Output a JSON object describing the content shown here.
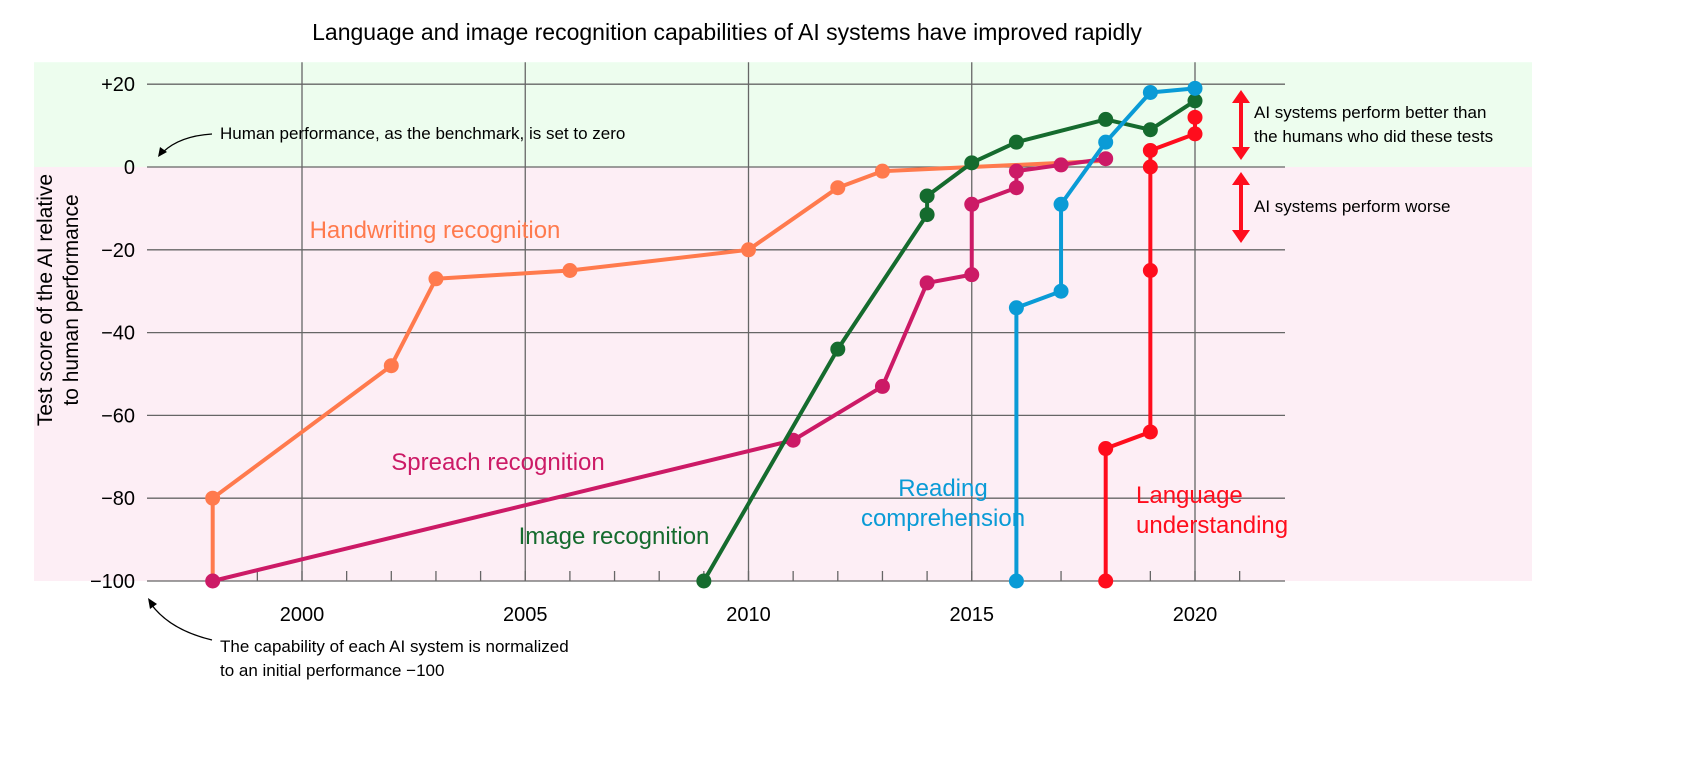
{
  "chart_data": {
    "type": "line",
    "title": "Language and image recognition capabilities of AI systems have improved rapidly",
    "xlabel": "",
    "ylabel": "Test score of the AI relative to human performance",
    "ylabel_lines": [
      "Test score of the AI relative",
      "to human performance"
    ],
    "xlim": [
      1997,
      2022
    ],
    "ylim": [
      -100,
      20
    ],
    "x_ticks": [
      2000,
      2005,
      2010,
      2015,
      2020
    ],
    "x_tick_labels": [
      "2000",
      "2005",
      "2010",
      "2015",
      "2020"
    ],
    "y_ticks": [
      20,
      0,
      -20,
      -40,
      -60,
      -80,
      -100
    ],
    "y_tick_labels": [
      "+20",
      "0",
      "−20",
      "−40",
      "−60",
      "−80",
      "−100"
    ],
    "grid": true,
    "series": [
      {
        "name": "Handwriting recognition",
        "color": "#ff7a4d",
        "x": [
          1998,
          1998,
          2002,
          2003,
          2006,
          2010,
          2012,
          2013,
          2018
        ],
        "y": [
          -100,
          -80,
          -48,
          -27,
          -25,
          -20,
          -5,
          -1,
          1.5
        ],
        "markers": [
          false,
          true,
          true,
          true,
          true,
          true,
          true,
          true,
          false
        ]
      },
      {
        "name": "Spreach recognition",
        "color": "#cc1a66",
        "x": [
          1998,
          2011,
          2013,
          2014,
          2015,
          2015,
          2016,
          2016,
          2017,
          2018
        ],
        "y": [
          -100,
          -66,
          -53,
          -28,
          -26,
          -9,
          -5,
          -1,
          0.5,
          2
        ]
      },
      {
        "name": "Image recognition",
        "color": "#156b2e",
        "x": [
          2009,
          2012,
          2014,
          2014,
          2015,
          2016,
          2018,
          2019,
          2020
        ],
        "y": [
          -100,
          -44,
          -11.5,
          -7,
          1,
          6,
          11.5,
          9,
          16
        ]
      },
      {
        "name": "Reading comprehension",
        "color": "#0a9bd6",
        "x": [
          2016,
          2016,
          2017,
          2017,
          2018,
          2019,
          2020
        ],
        "y": [
          -100,
          -34,
          -30,
          -9,
          6,
          18,
          19
        ]
      },
      {
        "name": "Language understanding",
        "color": "#ff0d1d",
        "x": [
          2018,
          2018,
          2019,
          2019,
          2019,
          2019,
          2020,
          2020
        ],
        "y": [
          -100,
          -68,
          -64,
          -25,
          0,
          4,
          8,
          12
        ]
      }
    ],
    "series_labels": [
      {
        "lines": [
          "Handwriting recognition"
        ]
      },
      {
        "lines": [
          "Spreach recognition"
        ]
      },
      {
        "lines": [
          "Image recognition"
        ]
      },
      {
        "lines": [
          "Reading",
          "comprehension"
        ]
      },
      {
        "lines": [
          "Language",
          "understanding"
        ]
      }
    ],
    "regions": {
      "above_color": "#edfdee",
      "below_color": "#fdeef5"
    },
    "annotations": {
      "benchmark": "Human performance, as the benchmark, is set to zero",
      "normalized": [
        "The capability of each AI system is normalized",
        "to an initial performance −100"
      ],
      "better": [
        "AI systems perform better than",
        "the humans who did these tests"
      ],
      "worse": "AI systems perform worse"
    }
  }
}
